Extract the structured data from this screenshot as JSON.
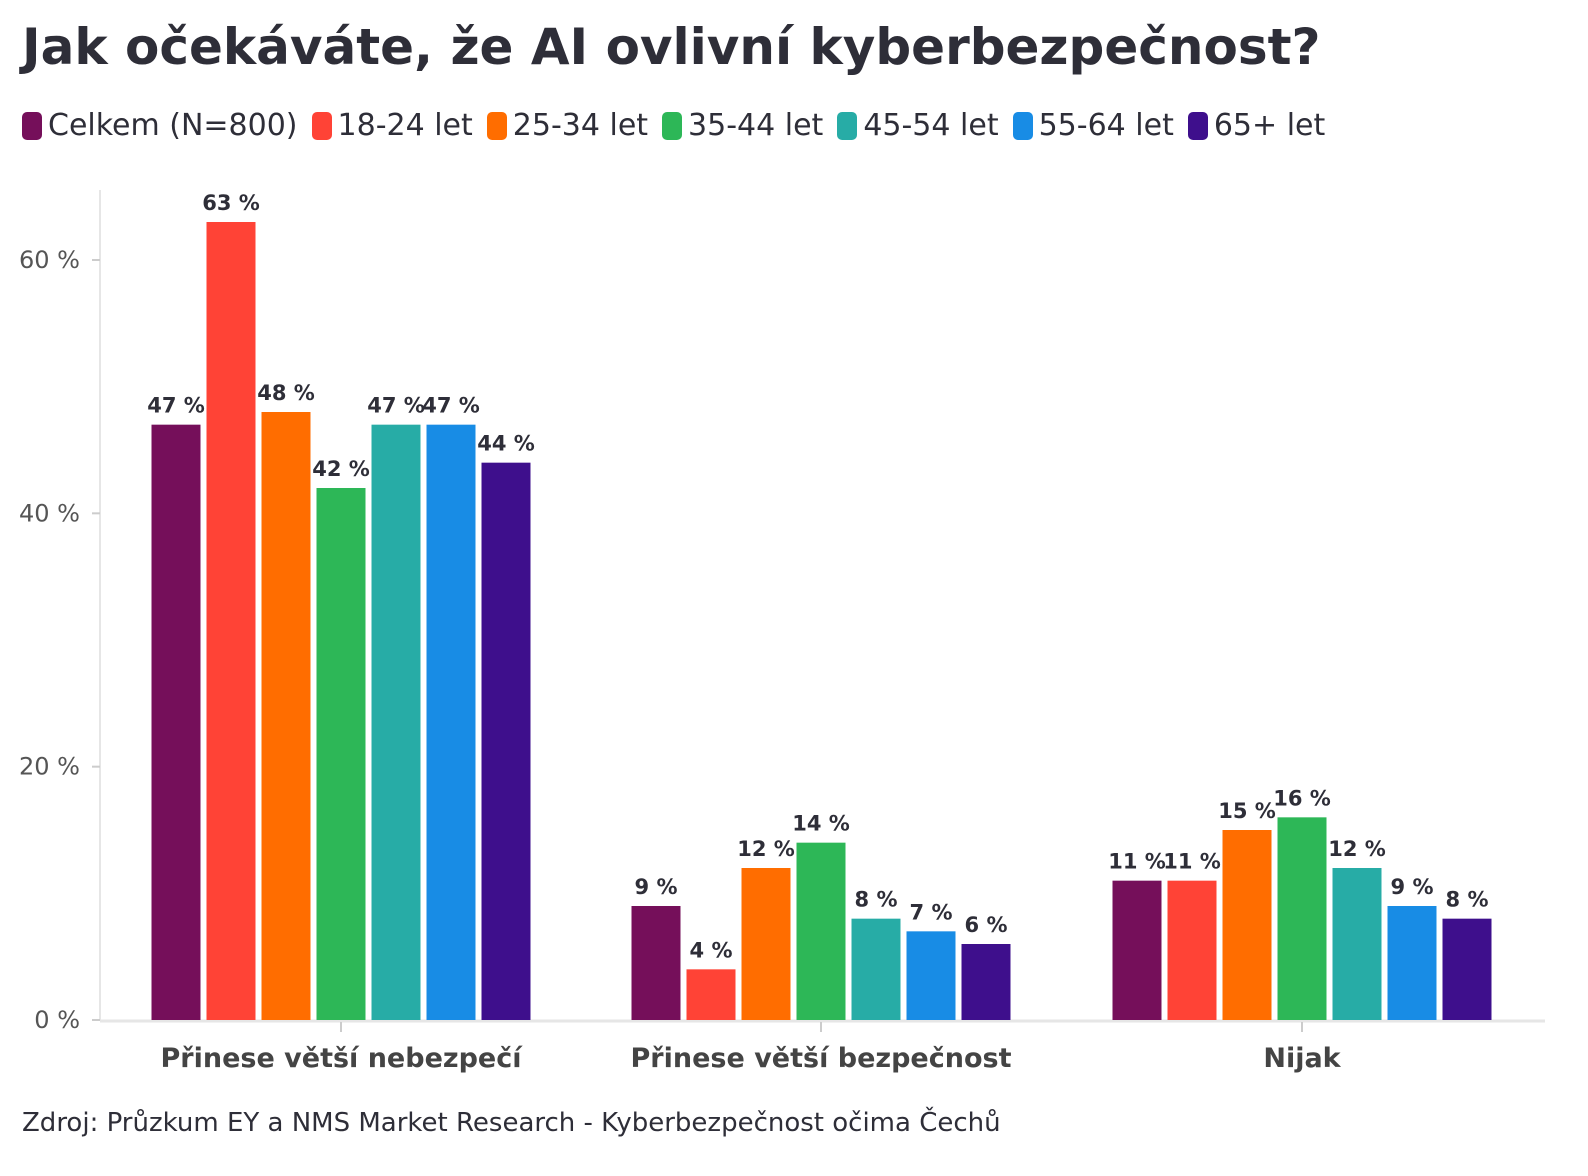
{
  "chart_data": {
    "type": "bar",
    "title": "Jak očekáváte, že AI ovlivní kyberbezpečnost?",
    "categories": [
      "Přinese větší nebezpečí",
      "Přinese větší bezpečnost",
      "Nijak"
    ],
    "series": [
      {
        "name": "Celkem (N=800)",
        "color": "#750f5a",
        "values": [
          47,
          9,
          11
        ]
      },
      {
        "name": "18-24 let",
        "color": "#ff4336",
        "values": [
          63,
          4,
          11
        ]
      },
      {
        "name": "25-34 let",
        "color": "#ff6d00",
        "values": [
          48,
          12,
          15
        ]
      },
      {
        "name": "35-44 let",
        "color": "#2db757",
        "values": [
          42,
          14,
          16
        ]
      },
      {
        "name": "45-54 let",
        "color": "#27aca6",
        "values": [
          47,
          8,
          12
        ]
      },
      {
        "name": "55-64 let",
        "color": "#188ce5",
        "values": [
          47,
          7,
          9
        ]
      },
      {
        "name": "65+ let",
        "color": "#3e0f8c",
        "values": [
          44,
          6,
          8
        ]
      }
    ],
    "yticks": [
      0,
      20,
      40,
      60
    ],
    "ytick_labels": [
      "0 %",
      "20 %",
      "40 %",
      "60 %"
    ],
    "ylim": [
      0,
      65
    ],
    "value_suffix": " %",
    "grid": false,
    "legend_position": "top-left"
  },
  "source": "Zdroj: Průzkum EY a NMS Market Research - Kyberbezpečnost očima Čechů"
}
